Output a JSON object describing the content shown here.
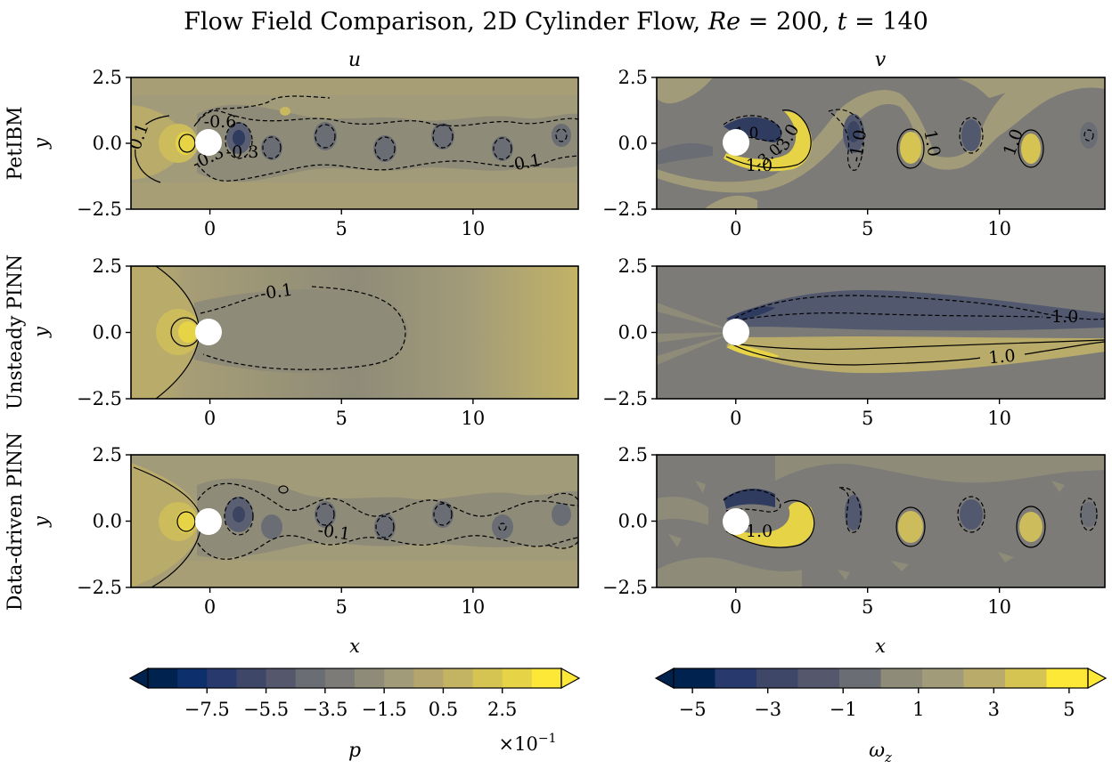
{
  "title": "Flow Field Comparison, 2D Cylinder Flow, Re = 200, t = 140",
  "title_parts": {
    "lead": "Flow Field Comparison, 2D Cylinder Flow, ",
    "re_sym": "Re",
    "re_val": " = 200, ",
    "t_sym": "t",
    "t_val": " = 140"
  },
  "columns": [
    {
      "key": "u",
      "label": "u"
    },
    {
      "key": "v",
      "label": "v"
    }
  ],
  "rows": [
    {
      "key": "petibm",
      "label": "PetIBM"
    },
    {
      "key": "unsteady",
      "label": "Unsteady PINN"
    },
    {
      "key": "datadriven",
      "label": "Data-driven PINN"
    }
  ],
  "axes": {
    "xlabel": "x",
    "ylabel": "y",
    "xlim": [
      -3,
      14
    ],
    "ylim": [
      -2.5,
      2.5
    ],
    "xticks": [
      "0",
      "5",
      "10"
    ],
    "xtick_values": [
      0,
      5,
      10
    ],
    "yticks": [
      "2.5",
      "0.0",
      "−2.5"
    ],
    "ytick_values": [
      2.5,
      0.0,
      -2.5
    ]
  },
  "contour_labels": {
    "petibm_u": [
      "0.1",
      "-0.6",
      "-0.3",
      "-0.3",
      "-0.1"
    ],
    "petibm_v": [
      "1.0",
      "-3.0",
      "-1.0",
      "1.0",
      "1.0",
      "-1.0",
      "-3.0"
    ],
    "unsteady_u": [
      "-0.1"
    ],
    "unsteady_v": [
      "-1.0",
      "1.0"
    ],
    "datadriven_u": [
      "-0.1"
    ],
    "datadriven_v": [
      "1.0"
    ]
  },
  "colorbars": [
    {
      "name": "pressure",
      "label": "p",
      "multiplier": "×10",
      "multiplier_exp": "−1",
      "ticks": [
        "−7.5",
        "−5.5",
        "−3.5",
        "−1.5",
        "0.5",
        "2.5"
      ],
      "tick_values": [
        -7.5,
        -5.5,
        -3.5,
        -1.5,
        0.5,
        2.5
      ],
      "range": [
        -9.5,
        4.5
      ]
    },
    {
      "name": "vorticity",
      "label": "ω",
      "label_sub": "z",
      "ticks": [
        "−5",
        "−3",
        "−1",
        "1",
        "3",
        "5"
      ],
      "tick_values": [
        -5,
        -3,
        -1,
        1,
        3,
        5
      ],
      "range": [
        -5.5,
        5.5
      ]
    }
  ],
  "colors": {
    "dark_blue": "#00224e",
    "yellow": "#fde737",
    "gray": "#7c7b78",
    "cylinder": "#ffffff"
  },
  "chart_data": {
    "type": "heatmap",
    "title": "Flow Field Comparison, 2D Cylinder Flow, Re = 200, t = 140",
    "panels": [
      {
        "row": "PetIBM",
        "field": "u",
        "contour_labels": [
          "0.1",
          "-0.6",
          "-0.3",
          "-0.3",
          "-0.1"
        ]
      },
      {
        "row": "PetIBM",
        "field": "v",
        "contour_labels": [
          "1.0",
          "-3.0",
          "-1.0",
          "1.0",
          "1.0",
          "-1.0",
          "-3.0"
        ]
      },
      {
        "row": "Unsteady PINN",
        "field": "u",
        "contour_labels": [
          "-0.1"
        ]
      },
      {
        "row": "Unsteady PINN",
        "field": "v",
        "contour_labels": [
          "-1.0",
          "1.0"
        ]
      },
      {
        "row": "Data-driven PINN",
        "field": "u",
        "contour_labels": [
          "-0.1"
        ]
      },
      {
        "row": "Data-driven PINN",
        "field": "v",
        "contour_labels": [
          "1.0"
        ]
      }
    ],
    "xlabel": "x",
    "ylabel": "y",
    "xlim": [
      -3,
      14
    ],
    "ylim": [
      -2.5,
      2.5
    ],
    "colorbar_left": {
      "label": "p",
      "scale": "×10^-1",
      "ticks": [
        -7.5,
        -5.5,
        -3.5,
        -1.5,
        0.5,
        2.5
      ]
    },
    "colorbar_right": {
      "label": "ωz",
      "ticks": [
        -5,
        -3,
        -1,
        1,
        3,
        5
      ]
    }
  }
}
